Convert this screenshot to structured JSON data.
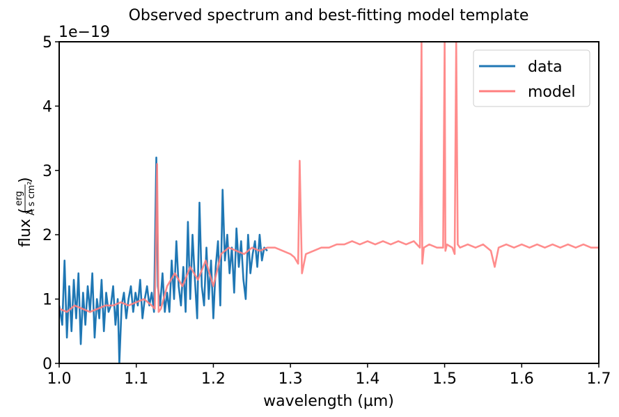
{
  "chart_data": {
    "type": "line",
    "title": "Observed spectrum and best-fitting model template",
    "xlabel": "wavelength (µm)",
    "ylabel_text": "flux (",
    "ylabel_close": ")",
    "ylabel_unit_numerator": "erg",
    "ylabel_unit_denominator": "Å s cm²",
    "offset_text": "1e−19",
    "xlim": [
      1.0,
      1.7
    ],
    "ylim": [
      0,
      5
    ],
    "xticks": [
      1.0,
      1.1,
      1.2,
      1.3,
      1.4,
      1.5,
      1.6,
      1.7
    ],
    "xtick_labels": [
      "1.0",
      "1.1",
      "1.2",
      "1.3",
      "1.4",
      "1.5",
      "1.6",
      "1.7"
    ],
    "yticks": [
      0,
      1,
      2,
      3,
      4,
      5
    ],
    "ytick_labels": [
      "0",
      "1",
      "2",
      "3",
      "4",
      "5"
    ],
    "legend_position": "top-right",
    "series": [
      {
        "name": "data",
        "color": "#1f77b4",
        "x": [
          1.0,
          1.004,
          1.007,
          1.01,
          1.013,
          1.016,
          1.019,
          1.022,
          1.025,
          1.028,
          1.031,
          1.034,
          1.037,
          1.04,
          1.043,
          1.046,
          1.049,
          1.052,
          1.055,
          1.058,
          1.061,
          1.064,
          1.067,
          1.07,
          1.073,
          1.076,
          1.078,
          1.081,
          1.084,
          1.087,
          1.09,
          1.093,
          1.096,
          1.099,
          1.102,
          1.105,
          1.108,
          1.111,
          1.114,
          1.117,
          1.12,
          1.123,
          1.126,
          1.128,
          1.131,
          1.134,
          1.137,
          1.14,
          1.143,
          1.146,
          1.149,
          1.152,
          1.155,
          1.158,
          1.161,
          1.164,
          1.167,
          1.17,
          1.173,
          1.176,
          1.179,
          1.182,
          1.185,
          1.188,
          1.191,
          1.194,
          1.197,
          1.2,
          1.203,
          1.206,
          1.209,
          1.212,
          1.215,
          1.218,
          1.221,
          1.224,
          1.227,
          1.23,
          1.233,
          1.236,
          1.239,
          1.242,
          1.245,
          1.248,
          1.251,
          1.254,
          1.257,
          1.26,
          1.263,
          1.266,
          1.27
        ],
        "values": [
          0.9,
          0.6,
          1.6,
          0.4,
          1.2,
          0.5,
          1.3,
          0.7,
          1.4,
          0.3,
          1.1,
          0.6,
          1.2,
          0.8,
          1.4,
          0.4,
          1.0,
          0.7,
          1.3,
          0.5,
          1.1,
          0.8,
          0.9,
          1.2,
          0.6,
          1.0,
          0.0,
          0.9,
          1.1,
          0.7,
          1.0,
          1.2,
          0.8,
          1.1,
          0.9,
          1.3,
          0.7,
          1.0,
          1.2,
          0.9,
          1.1,
          0.8,
          3.2,
          1.2,
          0.9,
          1.4,
          0.8,
          1.1,
          0.8,
          1.6,
          1.0,
          1.9,
          1.2,
          0.9,
          1.5,
          0.8,
          2.2,
          1.0,
          2.0,
          1.3,
          0.7,
          2.5,
          1.2,
          0.9,
          1.8,
          1.0,
          1.6,
          0.7,
          1.5,
          1.9,
          0.9,
          2.7,
          1.6,
          2.0,
          1.4,
          1.8,
          1.1,
          2.1,
          1.5,
          1.9,
          1.3,
          1.0,
          2.0,
          1.4,
          1.7,
          1.9,
          1.5,
          2.0,
          1.6,
          1.8,
          1.75
        ]
      },
      {
        "name": "model",
        "color": "#ff7f7f",
        "x": [
          1.0,
          1.01,
          1.02,
          1.03,
          1.04,
          1.05,
          1.06,
          1.07,
          1.08,
          1.09,
          1.1,
          1.11,
          1.12,
          1.124,
          1.127,
          1.129,
          1.132,
          1.14,
          1.15,
          1.16,
          1.17,
          1.18,
          1.19,
          1.2,
          1.21,
          1.22,
          1.23,
          1.24,
          1.25,
          1.26,
          1.27,
          1.28,
          1.29,
          1.3,
          1.305,
          1.31,
          1.312,
          1.315,
          1.32,
          1.33,
          1.34,
          1.35,
          1.36,
          1.37,
          1.38,
          1.39,
          1.4,
          1.41,
          1.42,
          1.43,
          1.44,
          1.45,
          1.46,
          1.468,
          1.47,
          1.471,
          1.473,
          1.48,
          1.49,
          1.498,
          1.5,
          1.501,
          1.503,
          1.51,
          1.513,
          1.515,
          1.517,
          1.52,
          1.53,
          1.54,
          1.55,
          1.56,
          1.565,
          1.57,
          1.58,
          1.59,
          1.6,
          1.61,
          1.62,
          1.63,
          1.64,
          1.65,
          1.66,
          1.67,
          1.68,
          1.69,
          1.7
        ],
        "values": [
          0.85,
          0.8,
          0.9,
          0.85,
          0.8,
          0.85,
          0.9,
          0.9,
          0.95,
          0.9,
          0.95,
          1.0,
          0.9,
          0.85,
          3.1,
          0.8,
          0.85,
          1.2,
          1.4,
          1.2,
          1.5,
          1.3,
          1.6,
          1.2,
          1.7,
          1.8,
          1.75,
          1.7,
          1.8,
          1.75,
          1.8,
          1.8,
          1.75,
          1.7,
          1.65,
          1.55,
          3.15,
          1.4,
          1.7,
          1.75,
          1.8,
          1.8,
          1.85,
          1.85,
          1.9,
          1.85,
          1.9,
          1.85,
          1.9,
          1.85,
          1.9,
          1.85,
          1.9,
          1.8,
          5.0,
          1.55,
          1.8,
          1.85,
          1.8,
          1.8,
          5.0,
          1.75,
          1.85,
          1.8,
          1.7,
          5.0,
          1.85,
          1.8,
          1.85,
          1.8,
          1.85,
          1.75,
          1.5,
          1.8,
          1.85,
          1.8,
          1.85,
          1.8,
          1.85,
          1.8,
          1.85,
          1.8,
          1.85,
          1.8,
          1.85,
          1.8,
          1.8
        ]
      }
    ]
  }
}
